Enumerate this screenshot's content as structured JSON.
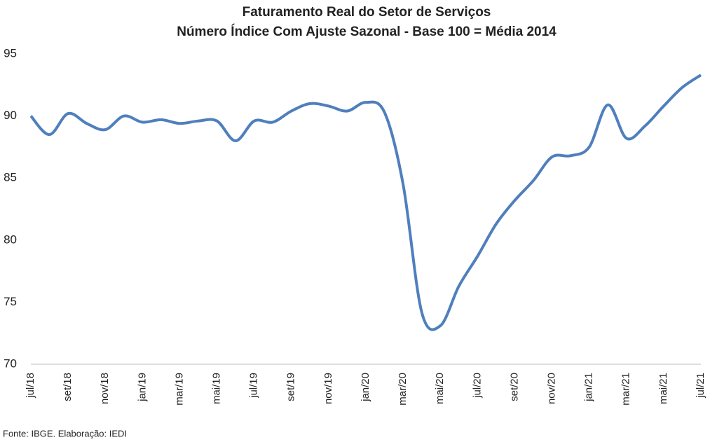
{
  "chart_data": {
    "type": "line",
    "title": "Faturamento Real do Setor de Serviços",
    "subtitle": "Número Índice Com Ajuste Sazonal - Base 100 = Média 2014",
    "source": "Fonte: IBGE. Elaboração: IEDI",
    "categories": [
      "jul/18",
      null,
      "set/18",
      null,
      "nov/18",
      null,
      "jan/19",
      null,
      "mar/19",
      null,
      "mai/19",
      null,
      "jul/19",
      null,
      "set/19",
      null,
      "nov/19",
      null,
      "jan/20",
      null,
      "mar/20",
      null,
      "mai/20",
      null,
      "jul/20",
      null,
      "set/20",
      null,
      "nov/20",
      null,
      "jan/21",
      null,
      "mar/21",
      null,
      "mai/21",
      null,
      "jul/21"
    ],
    "series": [
      {
        "name": "Faturamento",
        "color": "#4f7fbd",
        "values": [
          90.0,
          88.5,
          90.2,
          89.4,
          88.9,
          90.0,
          89.5,
          89.7,
          89.4,
          89.6,
          89.6,
          88.0,
          89.6,
          89.5,
          90.4,
          91.0,
          90.8,
          90.4,
          91.1,
          90.3,
          84.5,
          74.2,
          73.1,
          76.3,
          78.7,
          81.3,
          83.2,
          84.8,
          86.7,
          86.8,
          87.5,
          90.9,
          88.2,
          89.2,
          90.8,
          92.3,
          93.3
        ]
      }
    ],
    "ylim": [
      70,
      95
    ],
    "yticks": [
      70,
      75,
      80,
      85,
      90,
      95
    ],
    "grid": false
  }
}
